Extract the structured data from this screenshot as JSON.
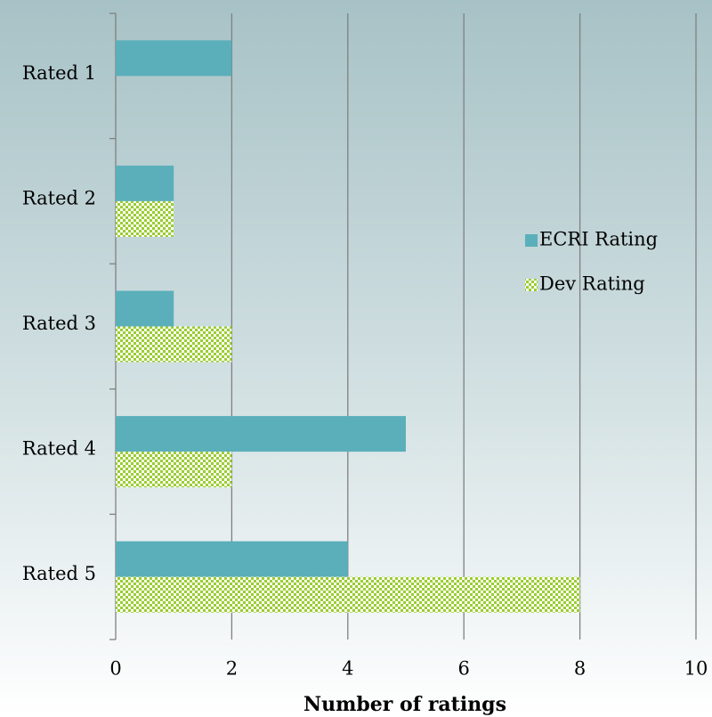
{
  "chart_data": {
    "type": "hbar",
    "x_label": "Number of ratings",
    "categories": [
      "Rated 1",
      "Rated 2",
      "Rated 3",
      "Rated 4",
      "Rated 5"
    ],
    "series": [
      {
        "name": "ECRI Rating",
        "color": "#5aafba",
        "pattern": "solid",
        "values": [
          2,
          1,
          1,
          5,
          4
        ]
      },
      {
        "name": "Dev Rating",
        "color": "#9acd32",
        "pattern": "checker",
        "values": [
          0,
          1,
          2,
          2,
          8
        ]
      }
    ],
    "xlim": [
      0,
      10
    ],
    "xticks": [
      0,
      2,
      4,
      6,
      8,
      10
    ],
    "grid": true,
    "legend": "right"
  }
}
